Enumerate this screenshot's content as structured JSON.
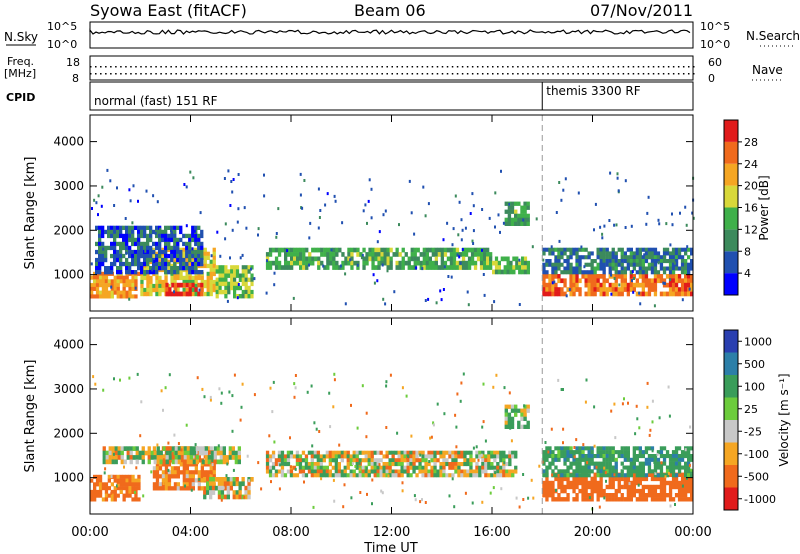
{
  "header": {
    "station": "Syowa East (fitACF)",
    "beam": "Beam 06",
    "date": "07/Nov/2011"
  },
  "nsky_strip": {
    "left_label": "N.Sky",
    "right_label": "N.Search",
    "tick_top": "10^5",
    "tick_bottom": "10^0"
  },
  "freq_strip": {
    "left_label_line1": "Freq.",
    "left_label_line2": "[MHz]",
    "left_tick_top": "18",
    "left_tick_bottom": "8",
    "right_label": "Nave",
    "right_tick_top": "60",
    "right_tick_bottom": "0"
  },
  "cpid": {
    "label": "CPID",
    "mode1": "normal (fast) 151 RF",
    "mode2": "themis 3300 RF",
    "switch_hour": 18.0
  },
  "x_axis": {
    "label": "Time UT",
    "ticks": [
      "00:00",
      "04:00",
      "08:00",
      "12:00",
      "16:00",
      "20:00",
      "00:00"
    ],
    "range_hours": [
      0,
      24
    ]
  },
  "power_colorbar": {
    "label": "Power [dB]",
    "ticks": [
      "4",
      "8",
      "12",
      "16",
      "20",
      "24",
      "28"
    ],
    "colors": [
      "#0000ff",
      "#2050b0",
      "#3c8a5c",
      "#3fb04a",
      "#d8d83a",
      "#f5a623",
      "#f06a1c",
      "#e11b1b"
    ]
  },
  "velocity_colorbar": {
    "label": "Velocity [m s⁻¹]",
    "ticks": [
      "1000",
      "500",
      "100",
      "25",
      "-25",
      "-100",
      "-500",
      "-1000"
    ],
    "colors": [
      "#2a3fb0",
      "#2c7fa8",
      "#3a9d5a",
      "#6ccc3c",
      "#c8c8c8",
      "#f5a623",
      "#f06a1c",
      "#e11b1b"
    ]
  },
  "panels": {
    "ylabel": "Slant Range [km]",
    "yticks": [
      "1000",
      "2000",
      "3000",
      "4000"
    ]
  },
  "chart_data": {
    "type": "heatmap",
    "title": "Syowa East (fitACF) Beam 06 07/Nov/2011",
    "xlabel": "Time UT",
    "ylabel": "Slant Range [km]",
    "x_range_hours": [
      0,
      24
    ],
    "ylim_km": [
      180,
      4600
    ],
    "cpid_change_hour": 18.0,
    "power_regions": [
      {
        "t0": 0.0,
        "t1": 2.0,
        "r0": 450,
        "r1": 1050,
        "power_db": 22
      },
      {
        "t0": 2.0,
        "t1": 5.0,
        "r0": 500,
        "r1": 1600,
        "power_db": 18
      },
      {
        "t0": 3.0,
        "t1": 4.5,
        "r0": 500,
        "r1": 800,
        "power_db": 28
      },
      {
        "t0": 0.2,
        "t1": 4.5,
        "r0": 1000,
        "r1": 2100,
        "power_db": 6
      },
      {
        "t0": 5.0,
        "t1": 6.5,
        "r0": 450,
        "r1": 1200,
        "power_db": 14
      },
      {
        "t0": 7.0,
        "t1": 16.0,
        "r0": 1100,
        "r1": 1600,
        "power_db": 12
      },
      {
        "t0": 16.0,
        "t1": 17.5,
        "r0": 1000,
        "r1": 1400,
        "power_db": 14
      },
      {
        "t0": 16.5,
        "t1": 17.5,
        "r0": 2100,
        "r1": 2650,
        "power_db": 12
      },
      {
        "t0": 18.0,
        "t1": 24.0,
        "r0": 500,
        "r1": 1000,
        "power_db": 24
      },
      {
        "t0": 18.0,
        "t1": 24.0,
        "r0": 1000,
        "r1": 1600,
        "power_db": 8
      }
    ],
    "velocity_regions": [
      {
        "t0": 0.0,
        "t1": 2.0,
        "r0": 450,
        "r1": 1050,
        "velocity": -200
      },
      {
        "t0": 2.5,
        "t1": 5.0,
        "r0": 700,
        "r1": 1700,
        "velocity": -150
      },
      {
        "t0": 0.5,
        "t1": 6.0,
        "r0": 1300,
        "r1": 1700,
        "velocity": 0
      },
      {
        "t0": 4.5,
        "t1": 6.5,
        "r0": 500,
        "r1": 1000,
        "velocity": 0
      },
      {
        "t0": 7.0,
        "t1": 17.0,
        "r0": 1000,
        "r1": 1600,
        "velocity": 0
      },
      {
        "t0": 16.5,
        "t1": 17.5,
        "r0": 2100,
        "r1": 2650,
        "velocity": 80
      },
      {
        "t0": 18.0,
        "t1": 24.0,
        "r0": 450,
        "r1": 1100,
        "velocity": -300
      },
      {
        "t0": 18.0,
        "t1": 24.0,
        "r0": 1000,
        "r1": 1700,
        "velocity": 200
      }
    ]
  }
}
